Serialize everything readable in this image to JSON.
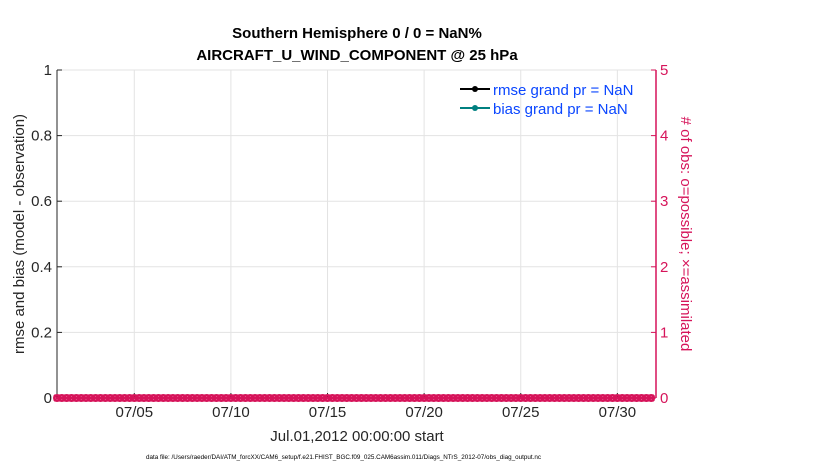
{
  "chart_data": {
    "type": "scatter",
    "title": [
      "Southern Hemisphere 0 / 0 = NaN%",
      "AIRCRAFT_U_WIND_COMPONENT @ 25 hPa"
    ],
    "xlabel": "Jul.01,2012 00:00:00 start",
    "ylabel_left": "rmse and bias (model - observation)",
    "ylabel_right": "# of obs: o=possible; ×=assimilated",
    "xlim": [
      "07/01",
      "08/01"
    ],
    "x_ticks": [
      "07/05",
      "07/10",
      "07/15",
      "07/20",
      "07/25",
      "07/30"
    ],
    "ylim_left": [
      0,
      1
    ],
    "y_ticks_left": [
      "0",
      "0.2",
      "0.4",
      "0.6",
      "0.8",
      "1"
    ],
    "ylim_right": [
      0,
      5
    ],
    "y_ticks_right": [
      "0",
      "1",
      "2",
      "3",
      "4",
      "5"
    ],
    "grid": true,
    "legend_placement": "top-right",
    "legend": [
      {
        "label": "rmse grand pr = NaN",
        "color": "#000000"
      },
      {
        "label": "bias grand pr = NaN",
        "color": "#008080"
      }
    ],
    "legend_text_color": "#0a46ff",
    "right_axis_color": "#d6145a",
    "series": [
      {
        "name": "rmse",
        "values": "NaN",
        "color": "#000000"
      },
      {
        "name": "bias",
        "values": "NaN",
        "color": "#008080"
      },
      {
        "name": "possible",
        "marker": "o",
        "axis": "right",
        "color": "#d6145a",
        "step_hours": 6,
        "value": 0
      },
      {
        "name": "assimilated",
        "marker": "x",
        "axis": "right",
        "color": "#d6145a",
        "step_hours": 6,
        "value": 0
      }
    ]
  },
  "footer": {
    "data_file": "data file: /Users/raeder/DAI/ATM_forcXX/CAM6_setup/f.e21.FHIST_BGC.f09_025.CAM6assim.011/Diags_NTrS_2012-07/obs_diag_output.nc"
  }
}
